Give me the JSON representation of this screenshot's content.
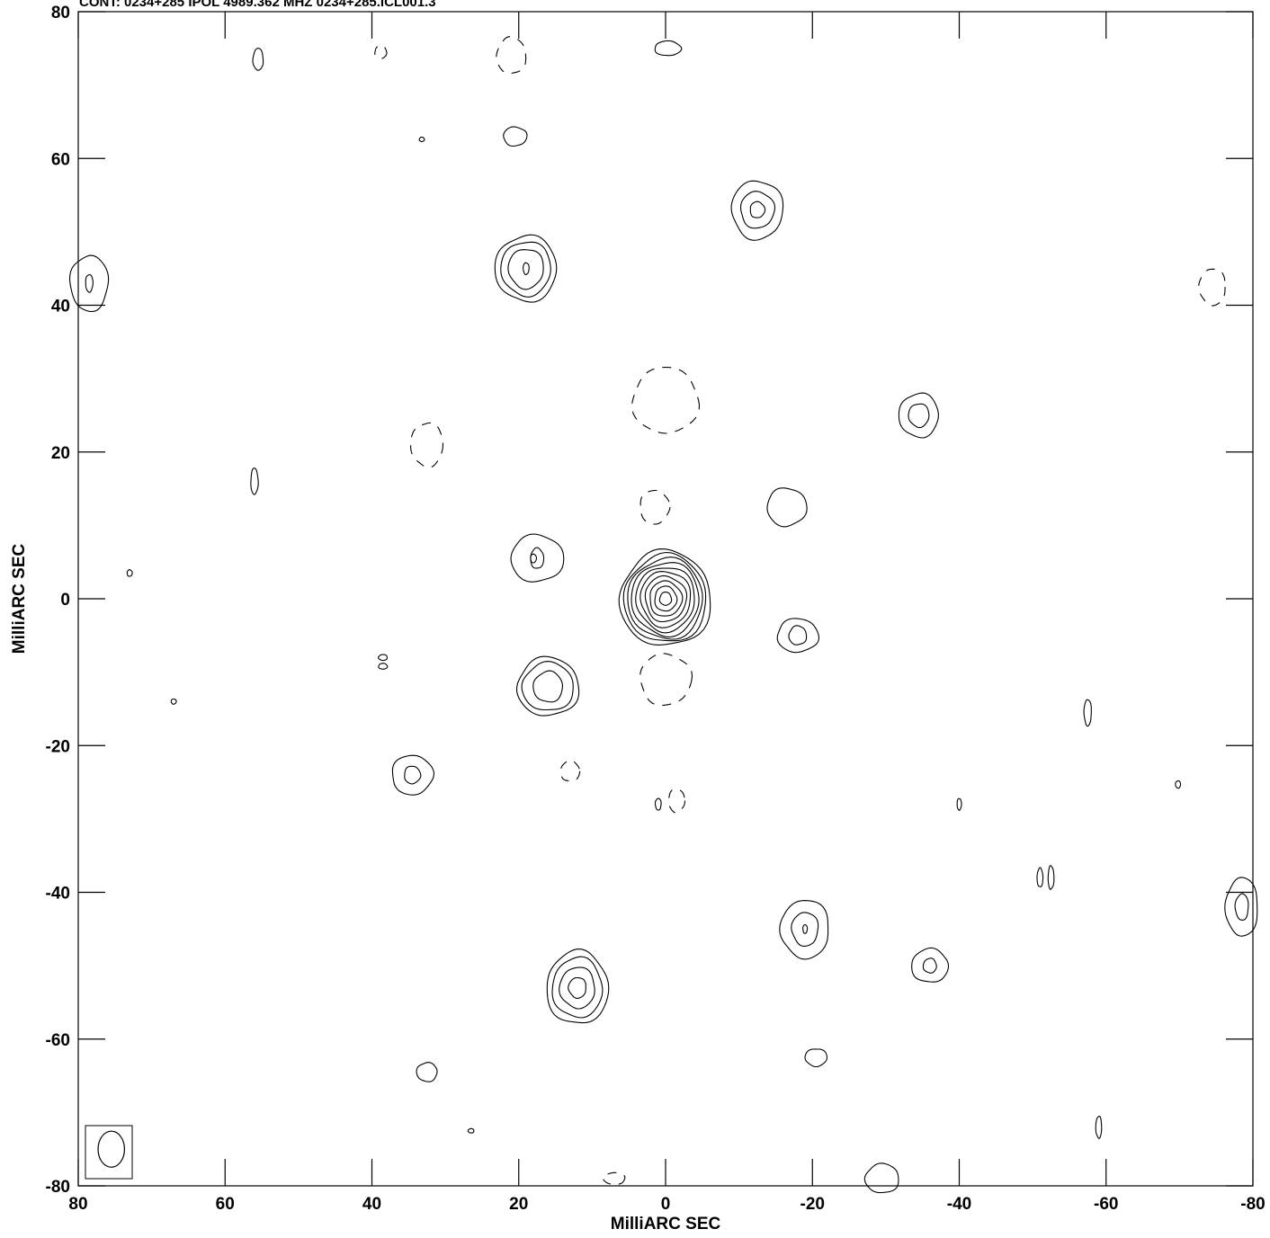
{
  "chart_data": {
    "type": "contour",
    "title": "CONT: 0234+285 IPOL 4989.362 MHZ 0234+285.ICL001.3",
    "xlabel": "MilliARC SEC",
    "ylabel": "MilliARC SEC",
    "xlim": [
      80,
      -80
    ],
    "ylim": [
      -80,
      80
    ],
    "x_ticks": [
      80,
      60,
      40,
      20,
      0,
      -20,
      -40,
      -60,
      -80
    ],
    "y_ticks": [
      80,
      60,
      40,
      20,
      0,
      -20,
      -40,
      -60,
      -80
    ],
    "x_tick_labels": [
      "80",
      "60",
      "40",
      "20",
      "0",
      "-20",
      "-40",
      "-60",
      "-80"
    ],
    "y_tick_labels": [
      "80",
      "60",
      "40",
      "20",
      "0",
      "-20",
      "-40",
      "-60",
      "-80"
    ],
    "grid": false,
    "line_color": "#000000",
    "beam": {
      "x": 75.5,
      "y": -75,
      "major_mas": 4.9,
      "minor_mas": 3.6,
      "pa_deg": 0
    },
    "sources": [
      {
        "x": 0,
        "y": 0,
        "rx": [
          0.8,
          1.5,
          2.2,
          2.8,
          3.4,
          4.0,
          4.6,
          5.1,
          5.6,
          6.2
        ],
        "ry": [
          0.9,
          1.7,
          2.4,
          3.1,
          3.8,
          4.4,
          5.0,
          5.5,
          6.0,
          6.5
        ]
      },
      {
        "x": -12.5,
        "y": 53,
        "rx": [
          1.0,
          2.3,
          3.5
        ],
        "ry": [
          1.1,
          2.5,
          4.0
        ]
      },
      {
        "x": 19,
        "y": 45,
        "rx": [
          0.4,
          2.4,
          3.4,
          4.2
        ],
        "ry": [
          0.8,
          2.7,
          3.7,
          4.5
        ]
      },
      {
        "x": -34.5,
        "y": 25,
        "rx": [
          1.4,
          2.7
        ],
        "ry": [
          1.6,
          3.0
        ]
      },
      {
        "x": 16,
        "y": -12,
        "rx": [
          2.0,
          3.5,
          4.2
        ],
        "ry": [
          2.1,
          3.3,
          4.0
        ]
      },
      {
        "x": -18,
        "y": -5,
        "rx": [
          1.2,
          2.8
        ],
        "ry": [
          1.3,
          2.3
        ]
      },
      {
        "x": 34.5,
        "y": -24,
        "rx": [
          1.1,
          2.8
        ],
        "ry": [
          1.2,
          2.7
        ]
      },
      {
        "x": -19,
        "y": -45,
        "rx": [
          0.3,
          1.8,
          3.3
        ],
        "ry": [
          0.6,
          2.3,
          4.0
        ]
      },
      {
        "x": 12,
        "y": -53,
        "rx": [
          1.2,
          2.4,
          3.4,
          4.2
        ],
        "ry": [
          1.4,
          2.8,
          4.1,
          5.0
        ]
      },
      {
        "x": -36,
        "y": -50,
        "rx": [
          0.9,
          2.5
        ],
        "ry": [
          1.0,
          2.3
        ]
      },
      {
        "x": 17.5,
        "y": 5.5,
        "rx": [
          0.9,
          3.6
        ],
        "ry": [
          1.4,
          3.2
        ]
      },
      {
        "x": -16.5,
        "y": 12.5,
        "rx": [
          2.7
        ],
        "ry": [
          2.6
        ]
      },
      {
        "x": 78.5,
        "y": 43,
        "rx": [
          0.5,
          2.6
        ],
        "ry": [
          1.2,
          3.8
        ]
      },
      {
        "x": -78.5,
        "y": -42,
        "rx": [
          0.9,
          2.2
        ],
        "ry": [
          1.8,
          4.0
        ]
      },
      {
        "x": 55.5,
        "y": 73.5,
        "rx": [
          0.7
        ],
        "ry": [
          1.5
        ]
      },
      {
        "x": -0.3,
        "y": 75,
        "rx": [
          1.8
        ],
        "ry": [
          1.0
        ]
      },
      {
        "x": 20.5,
        "y": 63,
        "rx": [
          1.6
        ],
        "ry": [
          1.3
        ]
      },
      {
        "x": -20.5,
        "y": -62.5,
        "rx": [
          1.5
        ],
        "ry": [
          1.2
        ]
      },
      {
        "x": 32.5,
        "y": -64.5,
        "rx": [
          1.4
        ],
        "ry": [
          1.3
        ]
      },
      {
        "x": -29.5,
        "y": -79,
        "rx": [
          2.3
        ],
        "ry": [
          2.0
        ]
      },
      {
        "x": 56,
        "y": 16,
        "rx": [
          0.5
        ],
        "ry": [
          1.8
        ]
      },
      {
        "x": 18,
        "y": 5.5,
        "rx": [
          0.4
        ],
        "ry": [
          0.6
        ]
      },
      {
        "x": -57.5,
        "y": -15.5,
        "rx": [
          0.5
        ],
        "ry": [
          1.8
        ]
      },
      {
        "x": -59,
        "y": -72,
        "rx": [
          0.4
        ],
        "ry": [
          1.5
        ]
      },
      {
        "x": -51,
        "y": -38,
        "rx": [
          0.4
        ],
        "ry": [
          1.3
        ]
      },
      {
        "x": -52.5,
        "y": -38,
        "rx": [
          0.4
        ],
        "ry": [
          1.6
        ]
      },
      {
        "x": -40,
        "y": -28,
        "rx": [
          0.3
        ],
        "ry": [
          0.8
        ]
      },
      {
        "x": 1,
        "y": -28,
        "rx": [
          0.4
        ],
        "ry": [
          0.8
        ]
      },
      {
        "x": 38.5,
        "y": -8,
        "rx": [
          0.6
        ],
        "ry": [
          0.4
        ]
      },
      {
        "x": 38.5,
        "y": -9.2,
        "rx": [
          0.6
        ],
        "ry": [
          0.4
        ]
      },
      {
        "x": 73,
        "y": 3.5,
        "rx": [
          0.35
        ],
        "ry": [
          0.45
        ]
      },
      {
        "x": 67,
        "y": -14,
        "rx": [
          0.35
        ],
        "ry": [
          0.35
        ]
      },
      {
        "x": -69.8,
        "y": -25.3,
        "rx": [
          0.35
        ],
        "ry": [
          0.5
        ]
      },
      {
        "x": 26.5,
        "y": -72.5,
        "rx": [
          0.4
        ],
        "ry": [
          0.3
        ]
      },
      {
        "x": 33.2,
        "y": 62.6,
        "rx": [
          0.35
        ],
        "ry": [
          0.3
        ]
      }
    ],
    "negative_features": [
      {
        "x": 0,
        "y": 27,
        "rx": 4.5,
        "ry": 4.5
      },
      {
        "x": 0,
        "y": -11,
        "rx": 3.5,
        "ry": 3.5
      },
      {
        "x": 32.5,
        "y": 21,
        "rx": 2.2,
        "ry": 3.0
      },
      {
        "x": 21,
        "y": 74,
        "rx": 2.0,
        "ry": 2.5
      },
      {
        "x": 1.5,
        "y": 12.5,
        "rx": 2.0,
        "ry": 2.3
      },
      {
        "x": -74.5,
        "y": 42.5,
        "rx": 1.8,
        "ry": 2.5
      },
      {
        "x": 13,
        "y": -23.5,
        "rx": 1.3,
        "ry": 1.4
      },
      {
        "x": -1.5,
        "y": -27.5,
        "rx": 1.1,
        "ry": 1.6
      },
      {
        "x": 7,
        "y": -79,
        "rx": 1.5,
        "ry": 0.8
      },
      {
        "x": 38.8,
        "y": 74.5,
        "rx": 0.8,
        "ry": 0.9
      }
    ]
  }
}
